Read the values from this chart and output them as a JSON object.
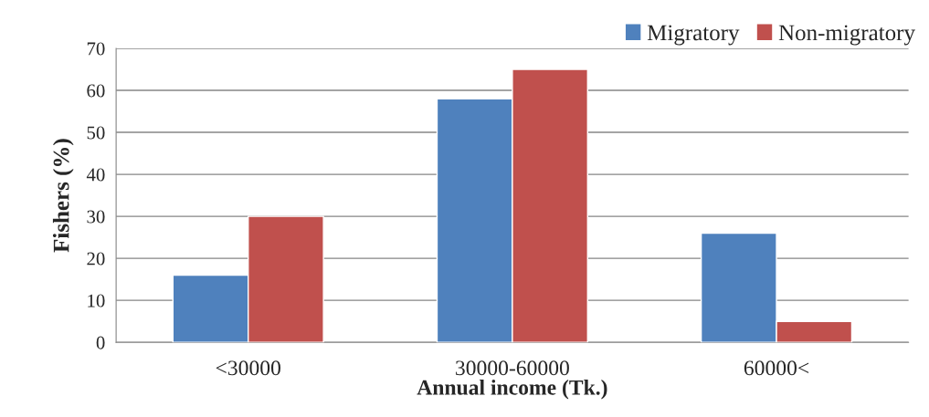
{
  "chart_data": {
    "type": "bar",
    "xlabel": "Annual income (Tk.)",
    "ylabel": "Fishers (%)",
    "categories": [
      "<30000",
      "30000-60000",
      "60000<"
    ],
    "series": [
      {
        "name": "Migratory",
        "color": "#4f81bd",
        "values": [
          16,
          58,
          26
        ]
      },
      {
        "name": "Non-migratory",
        "color": "#c0504d",
        "values": [
          30,
          65,
          5
        ]
      }
    ],
    "ylim": [
      0,
      70
    ],
    "yticks": [
      0,
      10,
      20,
      30,
      40,
      50,
      60,
      70
    ],
    "grid": "y",
    "legend": "top right"
  }
}
